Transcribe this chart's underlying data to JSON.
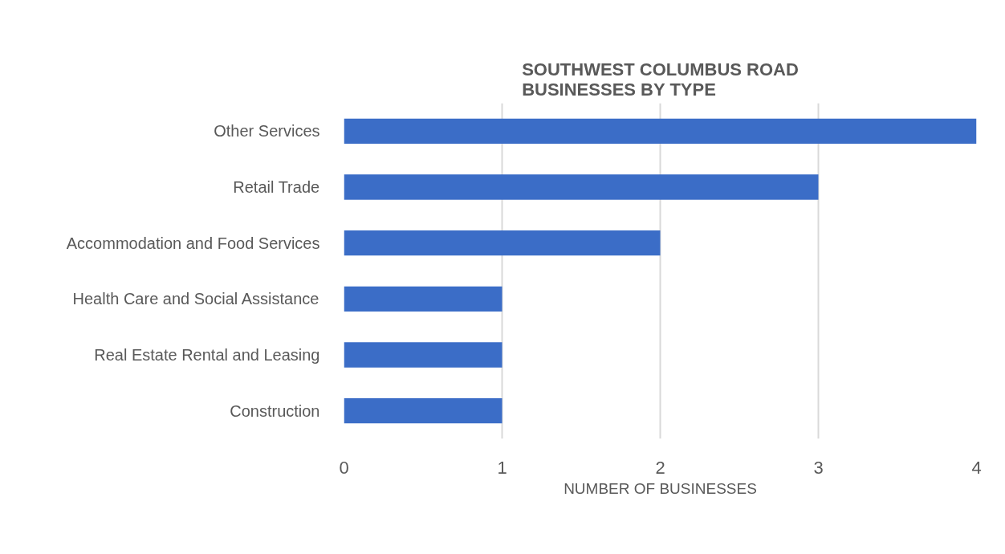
{
  "chart_data": {
    "type": "bar",
    "orientation": "horizontal",
    "title": "SOUTHWEST COLUMBUS ROAD\nBUSINESSES BY TYPE",
    "xlabel": "NUMBER OF BUSINESSES",
    "categories": [
      "Other Services",
      "Retail Trade",
      "Accommodation and Food Services",
      "Health Care and Social Assistance",
      "Real Estate Rental and Leasing",
      "Construction"
    ],
    "values": [
      4,
      3,
      2,
      1,
      1,
      1
    ],
    "color": "#3b6dc7",
    "xlim": [
      0,
      4
    ],
    "xticks": [
      0,
      1,
      2,
      3,
      4
    ],
    "grid": "x"
  }
}
